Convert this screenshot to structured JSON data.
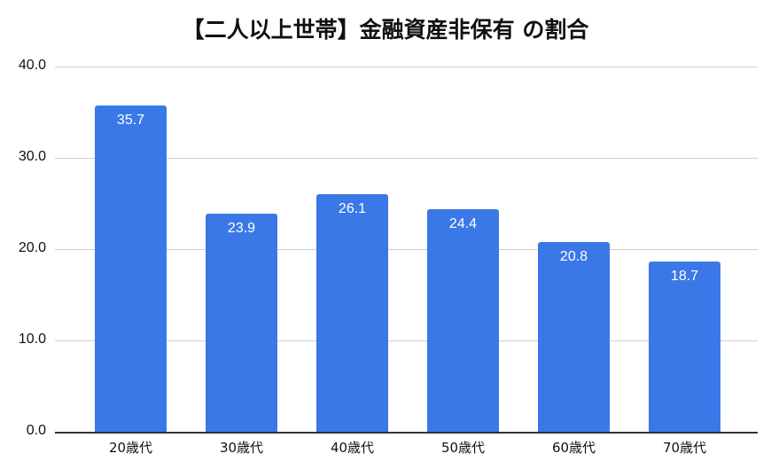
{
  "chart": {
    "title": "【二人以上世帯】金融資産非保有 の割合",
    "y_ticks": [
      "40.0",
      "30.0",
      "20.0",
      "10.0",
      "0.0"
    ],
    "categories": [
      "20歳代",
      "30歳代",
      "40歳代",
      "50歳代",
      "60歳代",
      "70歳代"
    ],
    "value_labels": [
      "35.7",
      "23.9",
      "26.1",
      "24.4",
      "20.8",
      "18.7"
    ],
    "bar_color": "#3b78e7"
  },
  "chart_data": {
    "type": "bar",
    "title": "【二人以上世帯】金融資産非保有 の割合",
    "categories": [
      "20歳代",
      "30歳代",
      "40歳代",
      "50歳代",
      "60歳代",
      "70歳代"
    ],
    "values": [
      35.7,
      23.9,
      26.1,
      24.4,
      20.8,
      18.7
    ],
    "xlabel": "",
    "ylabel": "",
    "ylim": [
      0,
      40
    ],
    "yticks": [
      0,
      10,
      20,
      30,
      40
    ],
    "grid": true,
    "legend": "none",
    "data_labels": true,
    "series": [
      {
        "name": "金融資産非保有 の割合",
        "values": [
          35.7,
          23.9,
          26.1,
          24.4,
          20.8,
          18.7
        ],
        "color": "#3b78e7"
      }
    ]
  }
}
